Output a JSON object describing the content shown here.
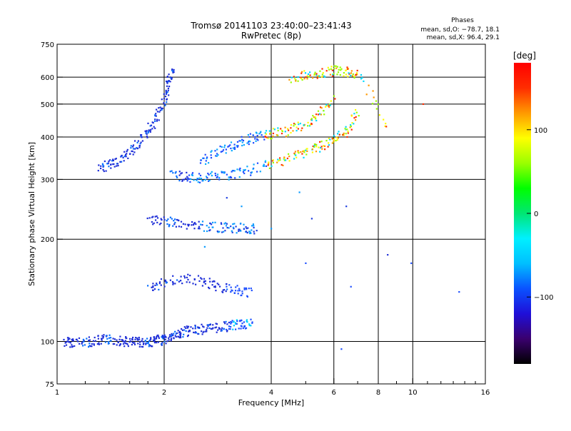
{
  "chart_data": {
    "type": "scatter",
    "title_line1": "Tromsø 20141103 23:40:00–23:41:43",
    "title_line2": "RwPretec (8p)",
    "stats": {
      "heading": "Phases",
      "line_o": "mean, sd,O: −78.7, 18.1",
      "line_x": "mean, sd,X:  96.4, 29.1"
    },
    "xlabel": "Frequency [MHz]",
    "ylabel": "Stationary phase Virtual Height [km]",
    "x_scale": "log",
    "y_scale": "log",
    "xlim": [
      1,
      16
    ],
    "ylim": [
      75,
      750
    ],
    "x_ticks": [
      1,
      2,
      4,
      6,
      8,
      10,
      16
    ],
    "x_tick_labels": [
      "1",
      "2",
      "4",
      "6",
      "8",
      "10",
      "16"
    ],
    "y_ticks": [
      75,
      100,
      200,
      300,
      400,
      500,
      600,
      750
    ],
    "y_tick_labels": [
      "75",
      "100",
      "200",
      "300",
      "400",
      "500",
      "600",
      "750"
    ],
    "x_gridlines": [
      2,
      4,
      6,
      8,
      10
    ],
    "y_gridlines": [
      100,
      200,
      300,
      400,
      500,
      600
    ],
    "grid": true,
    "colorbar": {
      "label": "[deg]",
      "range": [
        -180,
        180
      ],
      "ticks": [
        100,
        0,
        -100
      ],
      "tick_labels": [
        "100",
        "0",
        "−100"
      ],
      "colors": [
        "#000000",
        "#3a006e",
        "#1f0fd8",
        "#0a52ff",
        "#00bfff",
        "#00f0ff",
        "#00e673",
        "#00ff00",
        "#9aff00",
        "#ffff00",
        "#ff9900",
        "#ff2d00",
        "#ff0000"
      ]
    },
    "series": [
      {
        "x": [
          1.05,
          1.1,
          1.2,
          1.3,
          1.4,
          1.5,
          1.6,
          1.7,
          1.8,
          1.9,
          2.0,
          2.1,
          2.2,
          2.35,
          2.5,
          2.7,
          2.9,
          3.1,
          3.3,
          3.5
        ],
        "y": [
          100,
          100,
          100,
          101,
          102,
          101,
          100,
          100,
          100,
          101,
          102,
          104,
          106,
          108,
          109,
          110,
          111,
          112,
          113,
          114
        ]
      },
      {
        "x": [
          1.3,
          1.4,
          1.5,
          1.6,
          1.7,
          1.8,
          1.9,
          2.0,
          2.05,
          2.1
        ],
        "y": [
          325,
          332,
          345,
          365,
          390,
          420,
          460,
          520,
          580,
          640
        ]
      },
      {
        "x": [
          2.1,
          2.3,
          2.5,
          2.8,
          3.1,
          3.5,
          4.0,
          4.5,
          5.0,
          5.5,
          6.0,
          6.5,
          7.0
        ],
        "y": [
          310,
          305,
          305,
          308,
          312,
          320,
          335,
          350,
          365,
          378,
          390,
          420,
          480
        ]
      },
      {
        "x": [
          2.5,
          2.8,
          3.1,
          3.4,
          3.7,
          4.0,
          4.5,
          5.0,
          5.5,
          6.0
        ],
        "y": [
          340,
          360,
          380,
          395,
          405,
          410,
          420,
          440,
          470,
          520
        ]
      },
      {
        "x": [
          1.8,
          2.0,
          2.2,
          2.5,
          2.8,
          3.1,
          3.4,
          3.6
        ],
        "y": [
          228,
          226,
          224,
          220,
          218,
          217,
          216,
          216
        ]
      },
      {
        "x": [
          1.8,
          2.0,
          2.3,
          2.6,
          2.9,
          3.2,
          3.5
        ],
        "y": [
          145,
          150,
          155,
          150,
          145,
          142,
          140
        ]
      },
      {
        "x": [
          4.5,
          5.0,
          5.5,
          6.0,
          6.5,
          7.0,
          8.5
        ],
        "y": [
          600,
          610,
          620,
          630,
          625,
          615,
          420
        ]
      }
    ]
  }
}
